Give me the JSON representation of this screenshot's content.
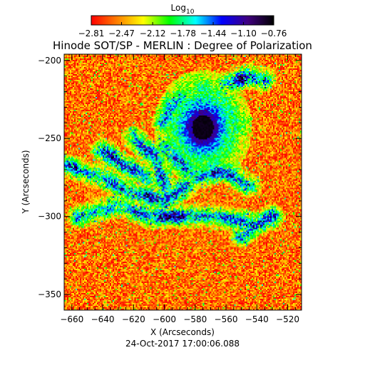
{
  "chart_data": {
    "type": "heatmap",
    "title": "Hinode SOT/SP - MERLIN : Degree of Polarization",
    "xlabel": "X (Arcseconds)",
    "ylabel": "Y (Arcseconds)",
    "xlim": [
      -665,
      -511
    ],
    "ylim": [
      -360,
      -196
    ],
    "x_ticks": [
      -660,
      -640,
      -620,
      -600,
      -580,
      -560,
      -540,
      -520
    ],
    "x_tick_labels": [
      "−660",
      "−640",
      "−620",
      "−600",
      "−580",
      "−560",
      "−540",
      "−520"
    ],
    "y_ticks": [
      -200,
      -250,
      -300,
      -350
    ],
    "y_tick_labels": [
      "−200",
      "−250",
      "−300",
      "−350"
    ],
    "colorbar": {
      "label_base": "Log",
      "label_sub": "10",
      "range": [
        -2.81,
        -0.76
      ],
      "ticks": [
        -2.81,
        -2.47,
        -2.12,
        -1.78,
        -1.44,
        -1.1,
        -0.76
      ],
      "tick_labels": [
        "−2.81",
        "−2.47",
        "−2.12",
        "−1.78",
        "−1.44",
        "−1.10",
        "−0.76"
      ],
      "colormap": [
        "#ff0000",
        "#ff8000",
        "#ffff00",
        "#00ff00",
        "#00ffff",
        "#0000ff",
        "#400080",
        "#000000"
      ]
    },
    "features": {
      "sunspot_center": [
        -575,
        -243
      ],
      "sunspot_peak": -0.78,
      "background_level": -2.55
    },
    "timestamp": "24-Oct-2017 17:00:06.088"
  }
}
